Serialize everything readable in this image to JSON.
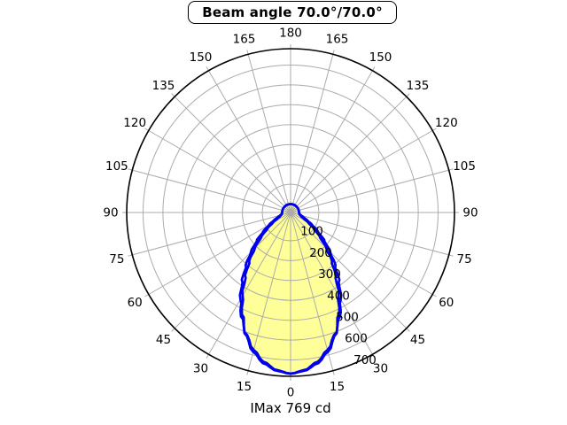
{
  "title": "Beam angle 70.0°/70.0°",
  "caption": "IMax 769 cd",
  "chart_data": {
    "type": "polar_intensity_distribution",
    "title": "Beam angle 70.0°/70.0°",
    "caption": "IMax 769 cd",
    "units": "cd",
    "imax_cd": 769,
    "beam_angle_deg": [
      70.0,
      70.0
    ],
    "angle_tick_labels_deg": [
      0,
      15,
      30,
      45,
      60,
      75,
      90,
      105,
      120,
      135,
      150,
      165,
      180
    ],
    "radial_tick_labels_cd": [
      100,
      200,
      300,
      400,
      500,
      600,
      700
    ],
    "orientation": "0-deg-at-bottom, symmetric left/right",
    "grid": "rings every 100 cd, spokes every 15 deg",
    "series": [
      {
        "name": "beam-curve-filled",
        "angles_deg": [
          0,
          5,
          10,
          15,
          20,
          25,
          30,
          35,
          40,
          45,
          50,
          55,
          60,
          65,
          70,
          75,
          80,
          85,
          90
        ],
        "intensity_cd": [
          769,
          758,
          730,
          684,
          616,
          528,
          440,
          355,
          280,
          212,
          150,
          100,
          60,
          31,
          14,
          6,
          2,
          1,
          0
        ],
        "stroke": "#0000EE",
        "fill": "#FFFF99"
      },
      {
        "name": "beam-curve-outline",
        "angles_deg": [
          0,
          5,
          10,
          15,
          20,
          25,
          30,
          35,
          40,
          45,
          50,
          55,
          60,
          65,
          70,
          75,
          80,
          85,
          90
        ],
        "intensity_cd": [
          769,
          754,
          722,
          674,
          610,
          540,
          462,
          383,
          307,
          240,
          180,
          126,
          83,
          49,
          25,
          11,
          4,
          1,
          0
        ],
        "stroke": "#0000EE",
        "fill": null
      }
    ],
    "colors": {
      "curve": "#0000EE",
      "fill": "#FFFF99",
      "grid": "#ABABAB",
      "axis": "#000000",
      "text": "#000000",
      "background": "#FFFFFF"
    }
  }
}
